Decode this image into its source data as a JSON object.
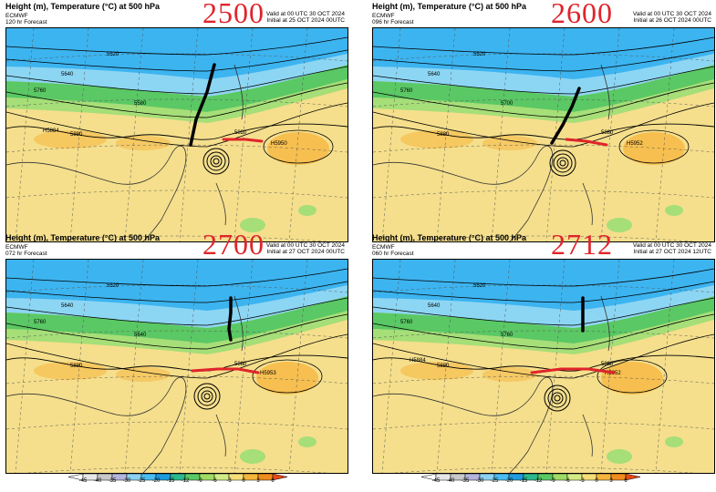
{
  "panels": [
    {
      "title": "Height (m), Temperature (°C) at 500 hPa",
      "stamp": "2500",
      "model": "ECMWF",
      "forecast": "120 hr Forecast",
      "valid": "Valid at 00 UTC 30 OCT 2024",
      "initial": "Initial at 25 OCT 2024 00UTC",
      "contour_labels": [
        "5520",
        "5640",
        "5760",
        "5580",
        "5880",
        "5820"
      ],
      "high_label": "H5884",
      "high2_label": "H5950"
    },
    {
      "title": "Height (m), Temperature (°C) at 500 hPa",
      "stamp": "2600",
      "model": "ECMWF",
      "forecast": "096 hr Forecast",
      "valid": "Valid at 00 UTC 30 OCT 2024",
      "initial": "Initial at 26 OCT 2024 00UTC",
      "contour_labels": [
        "5520",
        "5640",
        "5760",
        "5700",
        "5880",
        "5880"
      ],
      "high_label": "",
      "high2_label": "H5952"
    },
    {
      "title": "Height (m), Temperature (°C) at 500 hPa",
      "stamp": "2700",
      "model": "ECMWF",
      "forecast": "072 hr Forecast",
      "valid": "Valid at 00 UTC 30 OCT 2024",
      "initial": "Initial at 27 OCT 2024 00UTC",
      "contour_labels": [
        "5520",
        "5640",
        "5760",
        "5640",
        "5880",
        "5880"
      ],
      "high_label": "",
      "high2_label": "H5953"
    },
    {
      "title": "Height (m), Temperature (°C) at 500 hPa",
      "stamp": "2712",
      "model": "ECMWF",
      "forecast": "060 hr Forecast",
      "valid": "Valid at 00 UTC 30 OCT 2024",
      "initial": "Initial at 27 OCT 2024 12UTC",
      "contour_labels": [
        "5520",
        "5640",
        "5760",
        "5760",
        "5880",
        "5880"
      ],
      "high_label": "H5884",
      "high2_label": "H5952"
    }
  ],
  "colorbar": {
    "ticks": [
      "-45",
      "-40",
      "-35",
      "-30",
      "-25",
      "-20",
      "-15",
      "-12",
      "-9",
      "-6",
      "-3",
      "0",
      "3",
      "6"
    ],
    "colors": [
      "#ffffff",
      "#e6e6e6",
      "#c8c8c8",
      "#b4b4dc",
      "#8cd2f0",
      "#4bbcf0",
      "#1e9bdc",
      "#2ab88c",
      "#5ac864",
      "#9edc64",
      "#d2eb87",
      "#f5de78",
      "#f5b43c",
      "#f08c1e",
      "#e64b14"
    ]
  },
  "colors": {
    "cold_blue": "#3cb4f0",
    "cool_cyan": "#8cd6f4",
    "green": "#5ac864",
    "light_green": "#a6de78",
    "warm_yellow": "#f5df8c",
    "orange": "#f5b43c",
    "trough_line": "#000000",
    "ridge_line": "#e0242b"
  }
}
